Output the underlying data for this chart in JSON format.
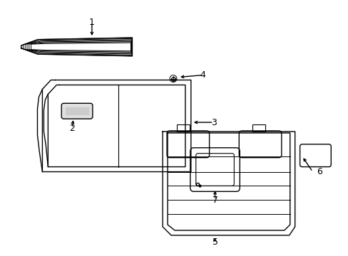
{
  "bg_color": "#ffffff",
  "line_color": "#000000",
  "lw": 1.0,
  "figsize": [
    4.89,
    3.6
  ],
  "dpi": 100
}
